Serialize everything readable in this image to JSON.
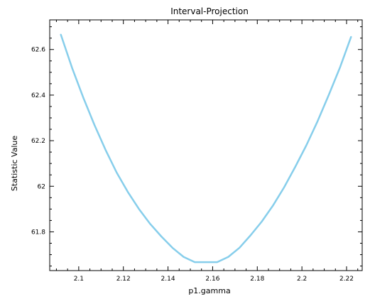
{
  "chart_data": {
    "type": "line",
    "title": "Interval-Projection",
    "xlabel": "p1.gamma",
    "ylabel": "Statistic Value",
    "xlim": [
      2.087,
      2.227
    ],
    "ylim": [
      61.63,
      62.73
    ],
    "x_ticks": [
      "2.1",
      "2.12",
      "2.14",
      "2.16",
      "2.18",
      "2.2",
      "2.22"
    ],
    "x_tick_values": [
      2.1,
      2.12,
      2.14,
      2.16,
      2.18,
      2.2,
      2.22
    ],
    "y_ticks": [
      "61.8",
      "62",
      "62.2",
      "62.4",
      "62.6"
    ],
    "y_tick_values": [
      61.8,
      62.0,
      62.2,
      62.4,
      62.6
    ],
    "grid": false,
    "legend": "none",
    "line_color": "#87ceeb",
    "series": [
      {
        "x": [
          2.092,
          2.097,
          2.102,
          2.107,
          2.112,
          2.117,
          2.122,
          2.127,
          2.132,
          2.137,
          2.142,
          2.147,
          2.152,
          2.157,
          2.162,
          2.167,
          2.172,
          2.177,
          2.182,
          2.187,
          2.192,
          2.197,
          2.202,
          2.207,
          2.212,
          2.217,
          2.222
        ],
        "values": [
          62.665,
          62.52,
          62.39,
          62.27,
          62.16,
          62.06,
          61.975,
          61.9,
          61.835,
          61.78,
          61.73,
          61.69,
          61.667,
          61.667,
          61.667,
          61.69,
          61.73,
          61.785,
          61.845,
          61.915,
          61.995,
          62.085,
          62.18,
          62.285,
          62.4,
          62.52,
          62.655
        ]
      }
    ]
  }
}
